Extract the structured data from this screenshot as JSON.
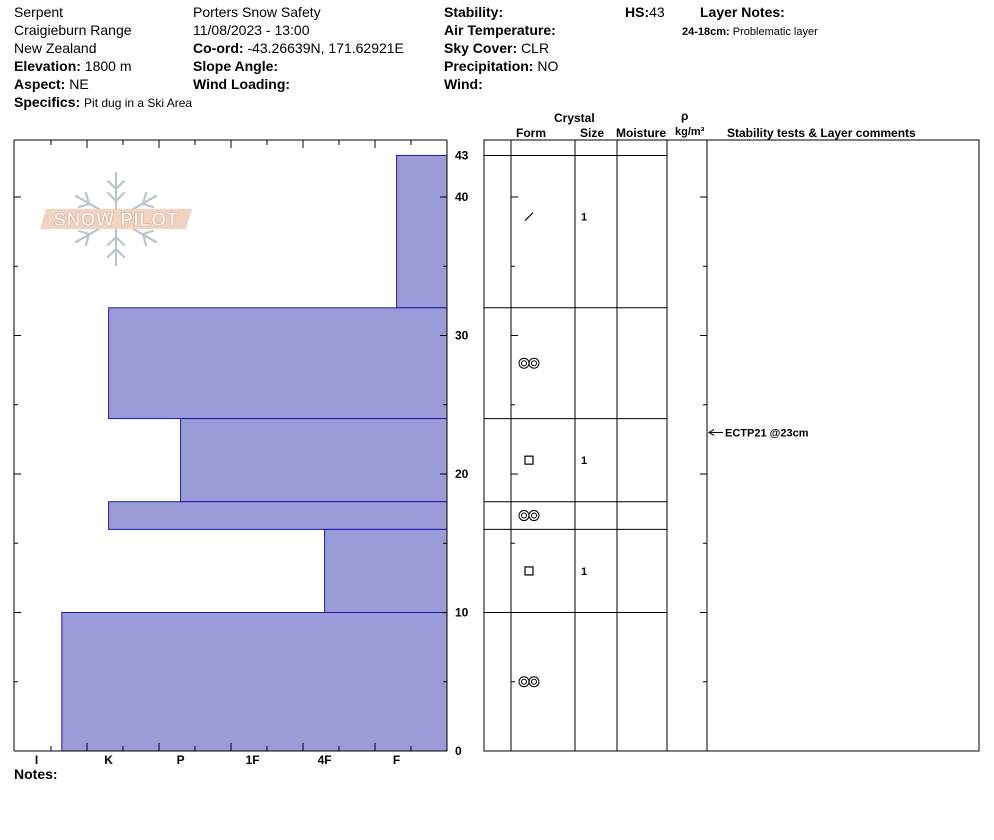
{
  "header": {
    "location": "Serpent",
    "range": "Craigieburn Range",
    "country": "New Zealand",
    "elevation_label": "Elevation:",
    "elevation_value": "1800 m",
    "aspect_label": "Aspect:",
    "aspect_value": "NE",
    "specifics_label": "Specifics:",
    "specifics_value": "Pit dug in a Ski Area",
    "observer": "Porters Snow Safety",
    "datetime": "11/08/2023 - 13:00",
    "coord_label": "Co-ord:",
    "coord_value": "-43.26639N, 171.62921E",
    "slope_label": "Slope Angle:",
    "wind_loading_label": "Wind Loading:",
    "stability_label": "Stability:",
    "air_temp_label": "Air Temperature:",
    "sky_label": "Sky Cover:",
    "sky_value": "CLR",
    "precip_label": "Precipitation:",
    "precip_value": "NO",
    "wind_label": "Wind:",
    "hs_label": "HS:",
    "hs_value": "43",
    "layer_notes_label": "Layer Notes:",
    "layer_note_range": "24-18cm:",
    "layer_note_text": "Problematic layer"
  },
  "logo_text": "SNOW PILOT",
  "notes_label": "Notes:",
  "columns": {
    "crystal": "Crystal",
    "form": "Form",
    "size": "Size",
    "moisture": "Moisture",
    "rho": "ρ",
    "density_unit": "kg/m³",
    "stability_comments": "Stability tests & Layer comments"
  },
  "colors": {
    "profile_fill": "#9b9bd8",
    "profile_stroke": "#1a1aa8"
  },
  "chart_data": {
    "type": "bar",
    "hs": 43,
    "ylim": [
      0,
      43
    ],
    "y_ticks": [
      0,
      10,
      20,
      30,
      40,
      43
    ],
    "hardness_scale": [
      "I",
      "K",
      "P",
      "1F",
      "4F",
      "F"
    ],
    "hardness_index": {
      "F": 1,
      "4F": 2,
      "1F": 3,
      "P": 4,
      "K": 5,
      "I": 6
    },
    "layers": [
      {
        "top": 43,
        "bottom": 32,
        "hardness": "F",
        "form": "slash",
        "size": "1"
      },
      {
        "top": 32,
        "bottom": 24,
        "hardness": "K-",
        "hardness_value": 5.0,
        "form": "rounds",
        "size": ""
      },
      {
        "top": 24,
        "bottom": 18,
        "hardness": "P+",
        "hardness_value": 4.0,
        "form": "square",
        "size": "1"
      },
      {
        "top": 18,
        "bottom": 16,
        "hardness": "K-",
        "hardness_value": 5.0,
        "form": "rounds",
        "size": ""
      },
      {
        "top": 16,
        "bottom": 10,
        "hardness": "4F",
        "hardness_value": 2.0,
        "form": "square",
        "size": "1"
      },
      {
        "top": 10,
        "bottom": 0,
        "hardness": "I-",
        "hardness_value": 5.65,
        "form": "rounds",
        "size": ""
      }
    ],
    "stability_tests": [
      {
        "depth": 23,
        "text": "ECTP21 @23cm"
      }
    ]
  }
}
